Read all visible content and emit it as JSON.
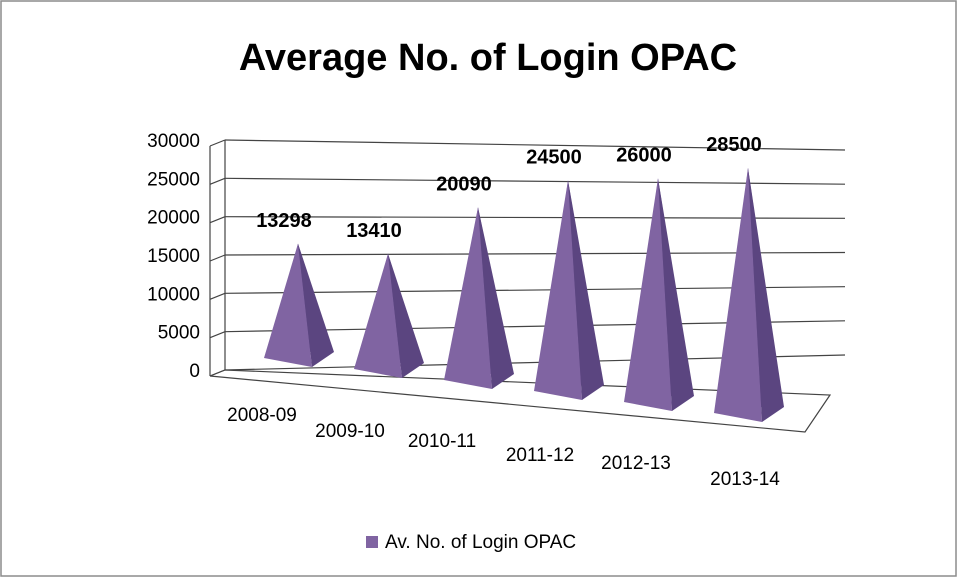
{
  "chart_data": {
    "type": "pyramid3d",
    "title": "Average  No. of Login OPAC",
    "categories": [
      "2008-09",
      "2009-10",
      "2010-11",
      "2011-12",
      "2012-13",
      "2013-14"
    ],
    "series": [
      {
        "name": "Av. No. of Login OPAC",
        "color": "#8064a2",
        "values": [
          13298,
          13410,
          20090,
          24500,
          26000,
          28500
        ]
      }
    ],
    "ylim": [
      0,
      30000
    ],
    "yticks": [
      0,
      5000,
      10000,
      15000,
      20000,
      25000,
      30000
    ],
    "grid": true,
    "legend": "bottom"
  }
}
